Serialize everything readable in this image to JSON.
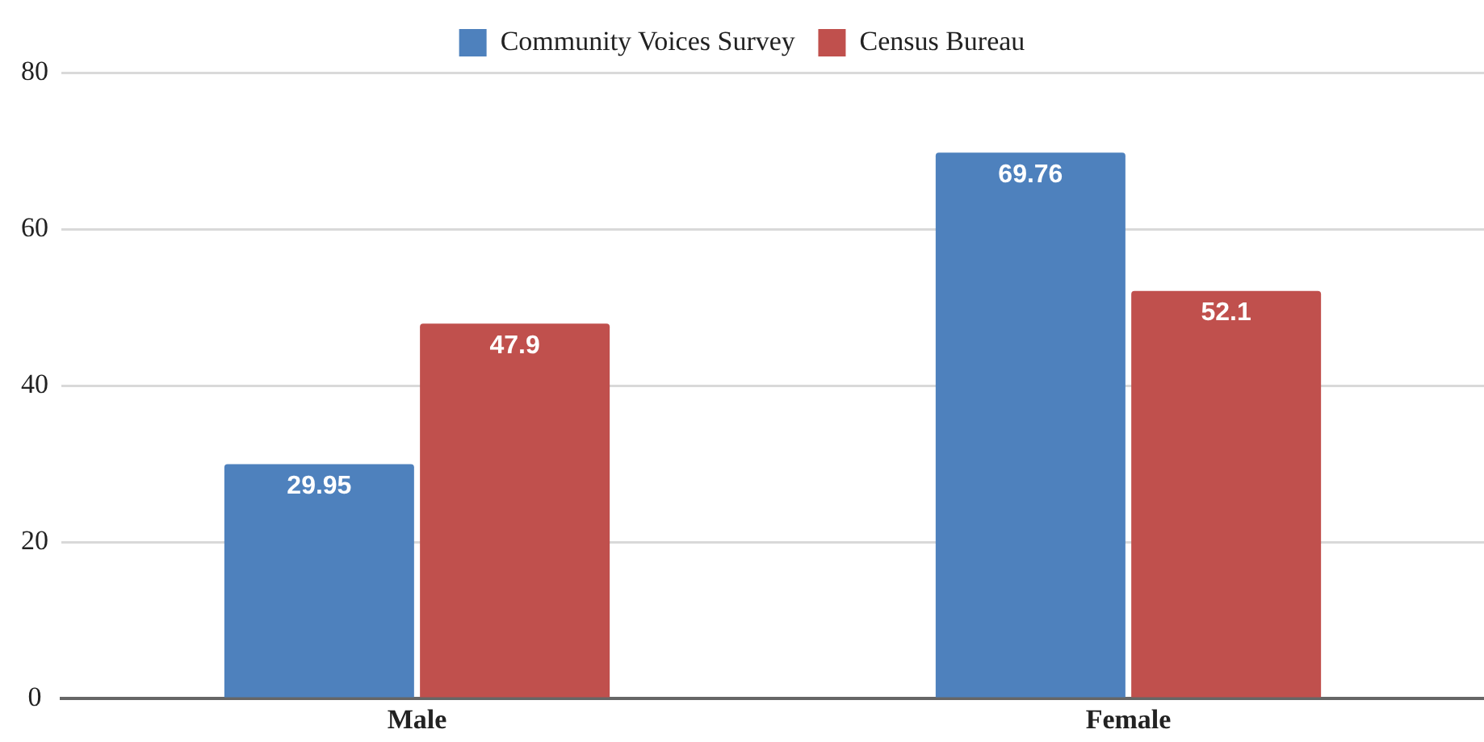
{
  "chart_data": {
    "type": "bar",
    "categories": [
      "Male",
      "Female"
    ],
    "series": [
      {
        "name": "Community Voices Survey",
        "color": "#4e81bd",
        "values": [
          29.95,
          69.76
        ]
      },
      {
        "name": "Census Bureau",
        "color": "#c0504d",
        "values": [
          47.9,
          52.1
        ]
      }
    ],
    "ylim": [
      0,
      80
    ],
    "yticks": [
      0,
      20,
      40,
      60,
      80
    ],
    "grid": "y",
    "legend": "top",
    "data_labels": true
  }
}
